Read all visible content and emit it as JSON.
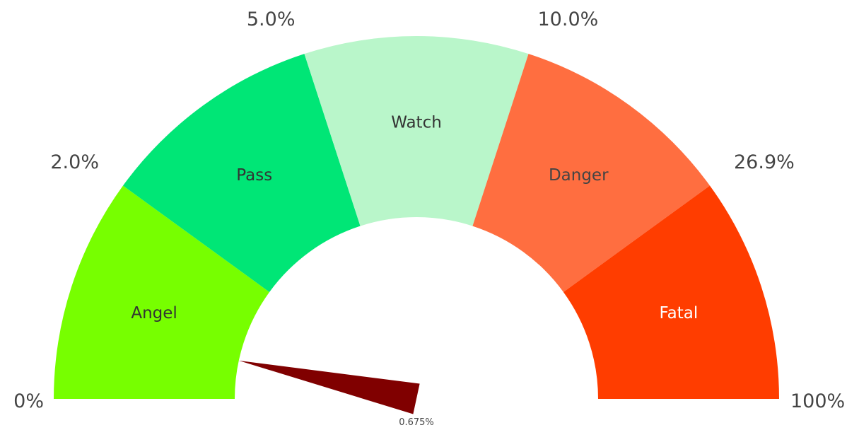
{
  "chart_data": {
    "type": "gauge",
    "segments": [
      {
        "label": "Angel",
        "color": "#77ff00",
        "label_color": "#333333"
      },
      {
        "label": "Pass",
        "color": "#00e676",
        "label_color": "#333333"
      },
      {
        "label": "Watch",
        "color": "#b9f6ca",
        "label_color": "#333333"
      },
      {
        "label": "Danger",
        "color": "#ff6e40",
        "label_color": "#444444"
      },
      {
        "label": "Fatal",
        "color": "#ff3d00",
        "label_color": "#ffffff"
      }
    ],
    "boundary_labels": [
      "0%",
      "2.0%",
      "5.0%",
      "10.0%",
      "26.9%",
      "100%"
    ],
    "value": 0.675,
    "value_label": "0.675%",
    "needle_color": "#800000"
  }
}
